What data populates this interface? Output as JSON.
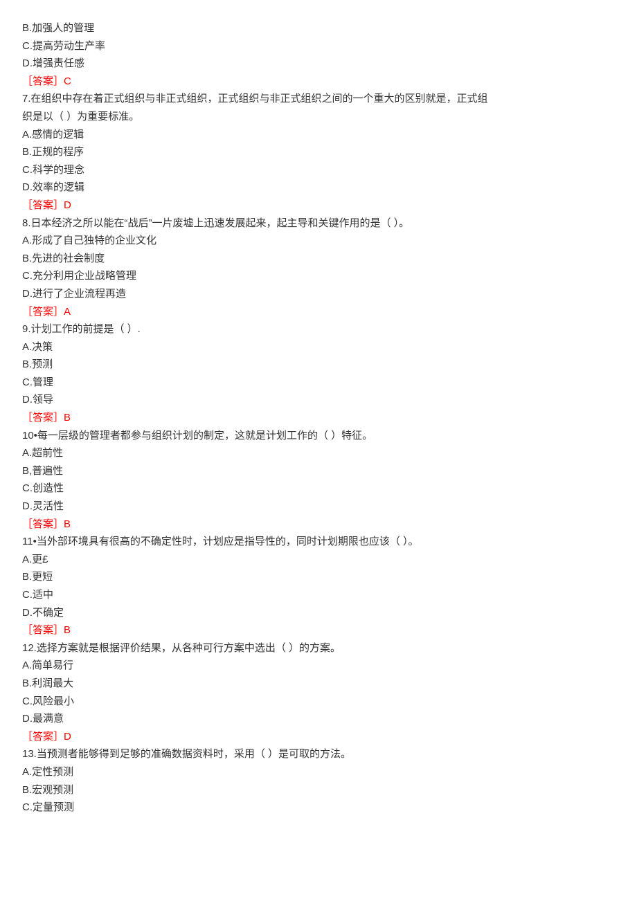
{
  "opts_orphan": [
    "B.加强人的管理",
    "C.提高劳动生产率",
    "D.增强责任感"
  ],
  "ans_orphan": "［答案］C",
  "q7": {
    "stem_a": "7.在组织中存在着正式组织与非正式组织，正式组织与非正式组织之间的一个重大的区别就是，正式组",
    "stem_b": "织是以（ ）为重要标准。",
    "opts": [
      "A.感情的逻辑",
      "B.正规的程序",
      "C.科学的理念",
      "D.效率的逻辑"
    ],
    "ans": "［答案］D"
  },
  "q8": {
    "stem": "8.日本经济之所以能在“战后”一片废墟上迅速发展起来，起主导和关键作用的是（ ）。",
    "opts": [
      "A.形成了自己独特的企业文化",
      "B.先进的社会制度",
      "C.充分利用企业战略管理",
      "D.进行了企业流程再造"
    ],
    "ans": "［答案］A"
  },
  "q9": {
    "stem": "9.计划工作的前提是（ ）.",
    "opts": [
      "A.决策",
      "B.预测",
      "C.管理",
      "D.领导"
    ],
    "ans": "［答案］B"
  },
  "q10": {
    "stem": "10•每一层级的管理者都参与组织计划的制定，这就是计划工作的（ ）特征。",
    "opts": [
      "A.超前性",
      "B,普遍性",
      "C.创造性",
      "D.灵活性"
    ],
    "ans": "［答案］B"
  },
  "q11": {
    "stem": "11•当外部环境具有很高的不确定性时，计划应是指导性的，同时计划期限也应该（ ）。",
    "opts": [
      "A.更£",
      "B.更短",
      "C.适中",
      "D.不确定"
    ],
    "ans": "［答案］B"
  },
  "q12": {
    "stem": "12.选择方案就是根据评价结果，从各种可行方案中选出（ ）的方案。",
    "opts": [
      "A.简单易行",
      "B.利润最大",
      "C.风险最小",
      "D.最满意"
    ],
    "ans": "［答案］D"
  },
  "q13": {
    "stem": "13.当预测者能够得到足够的准确数据资料时，采用（ ）是可取的方法。",
    "opts": [
      "A.定性预测",
      "B.宏观预测",
      "C.定量预测"
    ]
  }
}
